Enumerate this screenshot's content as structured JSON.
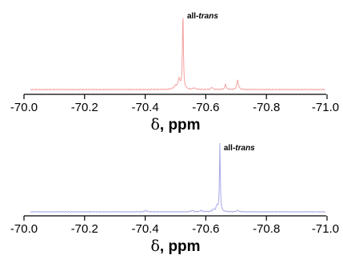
{
  "chart_data": [
    {
      "type": "line",
      "xlabel_symbol": "δ",
      "xlabel_rest": ", ppm",
      "xlim": [
        -70.0,
        -71.0
      ],
      "x_reversed": true,
      "x_ticks": [
        -70.0,
        -70.2,
        -70.4,
        -70.6,
        -70.8,
        -71.0
      ],
      "x_tick_labels": [
        "-70.0",
        "-70.2",
        "-70.4",
        "-70.6",
        "-70.8",
        "-71.0"
      ],
      "series_color": "#f4a0a0",
      "annotation": {
        "prefix": "all-",
        "italic": "trans",
        "x": -70.525
      },
      "peaks": [
        {
          "x": -70.5245,
          "height": 1.0,
          "width": 0.0018
        },
        {
          "x": -70.512,
          "height": 0.13,
          "width": 0.004
        },
        {
          "x": -70.5,
          "height": 0.04,
          "width": 0.006
        },
        {
          "x": -70.562,
          "height": 0.02,
          "width": 0.004
        },
        {
          "x": -70.62,
          "height": 0.03,
          "width": 0.003
        },
        {
          "x": -70.665,
          "height": 0.06,
          "width": 0.003
        },
        {
          "x": -70.705,
          "height": 0.12,
          "width": 0.003
        }
      ]
    },
    {
      "type": "line",
      "xlabel_symbol": "δ",
      "xlabel_rest": ", ppm",
      "xlim": [
        -70.0,
        -71.0
      ],
      "x_reversed": true,
      "x_ticks": [
        -70.0,
        -70.2,
        -70.4,
        -70.6,
        -70.8,
        -71.0
      ],
      "x_tick_labels": [
        "-70.0",
        "-70.2",
        "-70.4",
        "-70.6",
        "-70.8",
        "-71.0"
      ],
      "series_color": "#a8a8e6",
      "annotation": {
        "prefix": "all-",
        "italic": "trans",
        "x": -70.646
      },
      "peaks": [
        {
          "x": -70.6465,
          "height": 1.0,
          "width": 0.0016
        },
        {
          "x": -70.637,
          "height": 0.08,
          "width": 0.004
        },
        {
          "x": -70.625,
          "height": 0.03,
          "width": 0.004
        },
        {
          "x": -70.402,
          "height": 0.02,
          "width": 0.004
        },
        {
          "x": -70.555,
          "height": 0.02,
          "width": 0.004
        },
        {
          "x": -70.585,
          "height": 0.02,
          "width": 0.004
        },
        {
          "x": -70.705,
          "height": 0.02,
          "width": 0.004
        }
      ]
    }
  ]
}
